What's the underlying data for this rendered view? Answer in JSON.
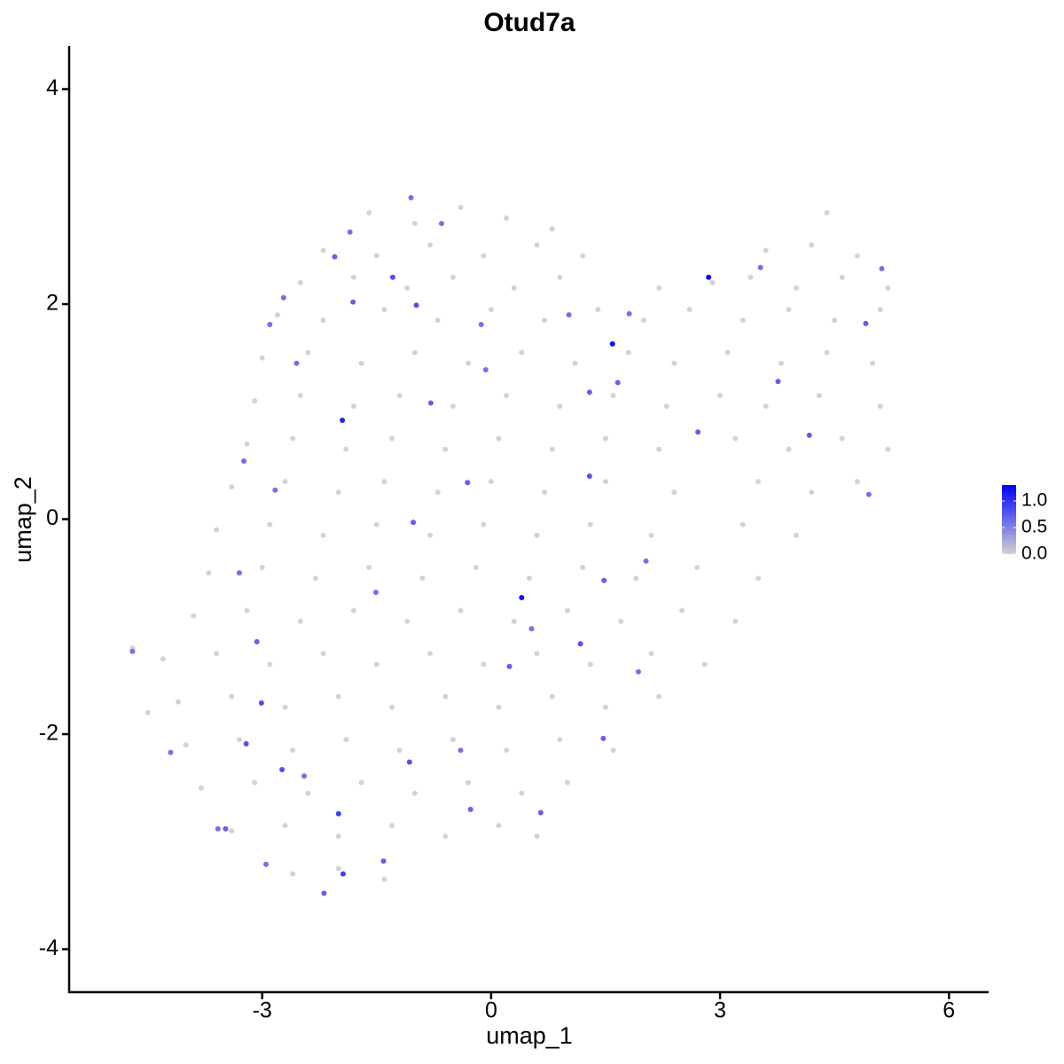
{
  "chart_data": {
    "type": "scatter",
    "title": "Otud7a",
    "x_label": "umap_1",
    "y_label": "umap_2",
    "xlim": [
      -5.53,
      6.52
    ],
    "ylim": [
      -4.4,
      4.4
    ],
    "xticks": [
      -3,
      0,
      3,
      6
    ],
    "yticks": [
      -4,
      -2,
      0,
      2,
      4
    ],
    "color_low": "#d3d3d3",
    "color_high": "#0000ff",
    "color_lim": [
      0,
      1.3
    ],
    "color_ticks": [
      {
        "value": 0,
        "label": "0.0"
      },
      {
        "value": 0.5,
        "label": "0.5"
      },
      {
        "value": 1,
        "label": "1.0"
      }
    ],
    "points": [
      {
        "x": -1.6,
        "y": 2.85,
        "expr": 0
      },
      {
        "x": -1.0,
        "y": 2.75,
        "expr": 0
      },
      {
        "x": -0.4,
        "y": 2.9,
        "expr": 0
      },
      {
        "x": 0.2,
        "y": 2.8,
        "expr": 0
      },
      {
        "x": 0.8,
        "y": 2.7,
        "expr": 0
      },
      {
        "x": 4.4,
        "y": 2.85,
        "expr": 0
      },
      {
        "x": -2.2,
        "y": 2.5,
        "expr": 0
      },
      {
        "x": -1.5,
        "y": 2.45,
        "expr": 0
      },
      {
        "x": -0.8,
        "y": 2.55,
        "expr": 0
      },
      {
        "x": -0.1,
        "y": 2.45,
        "expr": 0
      },
      {
        "x": 0.6,
        "y": 2.55,
        "expr": 0
      },
      {
        "x": 1.2,
        "y": 2.45,
        "expr": 0
      },
      {
        "x": 3.6,
        "y": 2.5,
        "expr": 0
      },
      {
        "x": 4.2,
        "y": 2.55,
        "expr": 0
      },
      {
        "x": 4.8,
        "y": 2.45,
        "expr": 0
      },
      {
        "x": -2.5,
        "y": 2.2,
        "expr": 0
      },
      {
        "x": -1.8,
        "y": 2.25,
        "expr": 0
      },
      {
        "x": -1.1,
        "y": 2.15,
        "expr": 0
      },
      {
        "x": -0.5,
        "y": 2.25,
        "expr": 0
      },
      {
        "x": 0.3,
        "y": 2.15,
        "expr": 0
      },
      {
        "x": 0.9,
        "y": 2.25,
        "expr": 0
      },
      {
        "x": 2.2,
        "y": 2.15,
        "expr": 0
      },
      {
        "x": 2.9,
        "y": 2.2,
        "expr": 0
      },
      {
        "x": 3.4,
        "y": 2.25,
        "expr": 0
      },
      {
        "x": 4.0,
        "y": 2.15,
        "expr": 0
      },
      {
        "x": 4.6,
        "y": 2.25,
        "expr": 0
      },
      {
        "x": 5.2,
        "y": 2.15,
        "expr": 0
      },
      {
        "x": -2.8,
        "y": 1.9,
        "expr": 0
      },
      {
        "x": -2.2,
        "y": 1.85,
        "expr": 0
      },
      {
        "x": -1.4,
        "y": 1.95,
        "expr": 0
      },
      {
        "x": -0.7,
        "y": 1.85,
        "expr": 0
      },
      {
        "x": 0.0,
        "y": 1.95,
        "expr": 0
      },
      {
        "x": 0.7,
        "y": 1.85,
        "expr": 0
      },
      {
        "x": 1.4,
        "y": 1.95,
        "expr": 0
      },
      {
        "x": 2.0,
        "y": 1.85,
        "expr": 0
      },
      {
        "x": 2.6,
        "y": 1.95,
        "expr": 0
      },
      {
        "x": 3.3,
        "y": 1.85,
        "expr": 0
      },
      {
        "x": 3.9,
        "y": 1.95,
        "expr": 0
      },
      {
        "x": 4.5,
        "y": 1.85,
        "expr": 0
      },
      {
        "x": 5.1,
        "y": 1.95,
        "expr": 0
      },
      {
        "x": -3.0,
        "y": 1.5,
        "expr": 0
      },
      {
        "x": -2.4,
        "y": 1.55,
        "expr": 0
      },
      {
        "x": -1.7,
        "y": 1.45,
        "expr": 0
      },
      {
        "x": -1.0,
        "y": 1.55,
        "expr": 0
      },
      {
        "x": -0.3,
        "y": 1.45,
        "expr": 0
      },
      {
        "x": 0.4,
        "y": 1.55,
        "expr": 0
      },
      {
        "x": 1.1,
        "y": 1.45,
        "expr": 0
      },
      {
        "x": 1.8,
        "y": 1.55,
        "expr": 0
      },
      {
        "x": 2.4,
        "y": 1.45,
        "expr": 0
      },
      {
        "x": 3.1,
        "y": 1.55,
        "expr": 0
      },
      {
        "x": 3.8,
        "y": 1.45,
        "expr": 0
      },
      {
        "x": 4.4,
        "y": 1.55,
        "expr": 0
      },
      {
        "x": 5.0,
        "y": 1.45,
        "expr": 0
      },
      {
        "x": -3.1,
        "y": 1.1,
        "expr": 0
      },
      {
        "x": -2.5,
        "y": 1.15,
        "expr": 0
      },
      {
        "x": -1.8,
        "y": 1.05,
        "expr": 0
      },
      {
        "x": -1.2,
        "y": 1.15,
        "expr": 0
      },
      {
        "x": -0.5,
        "y": 1.05,
        "expr": 0
      },
      {
        "x": 0.2,
        "y": 1.15,
        "expr": 0
      },
      {
        "x": 0.9,
        "y": 1.05,
        "expr": 0
      },
      {
        "x": 1.6,
        "y": 1.15,
        "expr": 0
      },
      {
        "x": 2.3,
        "y": 1.05,
        "expr": 0
      },
      {
        "x": 3.0,
        "y": 1.15,
        "expr": 0
      },
      {
        "x": 3.6,
        "y": 1.05,
        "expr": 0
      },
      {
        "x": 4.3,
        "y": 1.15,
        "expr": 0
      },
      {
        "x": 5.1,
        "y": 1.05,
        "expr": 0
      },
      {
        "x": -3.2,
        "y": 0.7,
        "expr": 0
      },
      {
        "x": -2.6,
        "y": 0.75,
        "expr": 0
      },
      {
        "x": -1.9,
        "y": 0.65,
        "expr": 0
      },
      {
        "x": -1.3,
        "y": 0.75,
        "expr": 0
      },
      {
        "x": -0.6,
        "y": 0.65,
        "expr": 0
      },
      {
        "x": 0.1,
        "y": 0.75,
        "expr": 0
      },
      {
        "x": 0.8,
        "y": 0.65,
        "expr": 0
      },
      {
        "x": 1.5,
        "y": 0.75,
        "expr": 0
      },
      {
        "x": 2.2,
        "y": 0.65,
        "expr": 0
      },
      {
        "x": 3.2,
        "y": 0.75,
        "expr": 0
      },
      {
        "x": 3.9,
        "y": 0.65,
        "expr": 0
      },
      {
        "x": 4.6,
        "y": 0.75,
        "expr": 0
      },
      {
        "x": 5.2,
        "y": 0.65,
        "expr": 0
      },
      {
        "x": -3.4,
        "y": 0.3,
        "expr": 0
      },
      {
        "x": -2.7,
        "y": 0.35,
        "expr": 0
      },
      {
        "x": -2.0,
        "y": 0.25,
        "expr": 0
      },
      {
        "x": -1.4,
        "y": 0.35,
        "expr": 0
      },
      {
        "x": -0.7,
        "y": 0.25,
        "expr": 0
      },
      {
        "x": 0.0,
        "y": 0.35,
        "expr": 0
      },
      {
        "x": 0.7,
        "y": 0.25,
        "expr": 0
      },
      {
        "x": 1.5,
        "y": 0.35,
        "expr": 0
      },
      {
        "x": 2.4,
        "y": 0.25,
        "expr": 0
      },
      {
        "x": 3.5,
        "y": 0.35,
        "expr": 0
      },
      {
        "x": 4.2,
        "y": 0.25,
        "expr": 0
      },
      {
        "x": 4.8,
        "y": 0.35,
        "expr": 0
      },
      {
        "x": -3.6,
        "y": -0.1,
        "expr": 0
      },
      {
        "x": -2.9,
        "y": -0.05,
        "expr": 0
      },
      {
        "x": -2.2,
        "y": -0.15,
        "expr": 0
      },
      {
        "x": -1.5,
        "y": -0.05,
        "expr": 0
      },
      {
        "x": -0.8,
        "y": -0.15,
        "expr": 0
      },
      {
        "x": -0.1,
        "y": -0.05,
        "expr": 0
      },
      {
        "x": 0.6,
        "y": -0.15,
        "expr": 0
      },
      {
        "x": 1.3,
        "y": -0.05,
        "expr": 0
      },
      {
        "x": 2.1,
        "y": -0.15,
        "expr": 0
      },
      {
        "x": 3.3,
        "y": -0.05,
        "expr": 0
      },
      {
        "x": 4.0,
        "y": -0.15,
        "expr": 0
      },
      {
        "x": -3.7,
        "y": -0.5,
        "expr": 0
      },
      {
        "x": -3.0,
        "y": -0.45,
        "expr": 0
      },
      {
        "x": -2.3,
        "y": -0.55,
        "expr": 0
      },
      {
        "x": -1.6,
        "y": -0.45,
        "expr": 0
      },
      {
        "x": -0.9,
        "y": -0.55,
        "expr": 0
      },
      {
        "x": -0.2,
        "y": -0.45,
        "expr": 0
      },
      {
        "x": 0.5,
        "y": -0.55,
        "expr": 0
      },
      {
        "x": 1.2,
        "y": -0.45,
        "expr": 0
      },
      {
        "x": 1.9,
        "y": -0.55,
        "expr": 0
      },
      {
        "x": 2.7,
        "y": -0.45,
        "expr": 0
      },
      {
        "x": 3.5,
        "y": -0.55,
        "expr": 0
      },
      {
        "x": -3.9,
        "y": -0.9,
        "expr": 0
      },
      {
        "x": -3.2,
        "y": -0.85,
        "expr": 0
      },
      {
        "x": -2.5,
        "y": -0.95,
        "expr": 0
      },
      {
        "x": -1.8,
        "y": -0.85,
        "expr": 0
      },
      {
        "x": -1.1,
        "y": -0.95,
        "expr": 0
      },
      {
        "x": -0.4,
        "y": -0.85,
        "expr": 0
      },
      {
        "x": 0.3,
        "y": -0.95,
        "expr": 0
      },
      {
        "x": 1.0,
        "y": -0.85,
        "expr": 0
      },
      {
        "x": 1.7,
        "y": -0.95,
        "expr": 0
      },
      {
        "x": 2.5,
        "y": -0.85,
        "expr": 0
      },
      {
        "x": 3.2,
        "y": -0.95,
        "expr": 0
      },
      {
        "x": -4.3,
        "y": -1.3,
        "expr": 0
      },
      {
        "x": -3.6,
        "y": -1.25,
        "expr": 0
      },
      {
        "x": -2.9,
        "y": -1.35,
        "expr": 0
      },
      {
        "x": -2.2,
        "y": -1.25,
        "expr": 0
      },
      {
        "x": -1.5,
        "y": -1.35,
        "expr": 0
      },
      {
        "x": -0.8,
        "y": -1.25,
        "expr": 0
      },
      {
        "x": -0.1,
        "y": -1.35,
        "expr": 0
      },
      {
        "x": 0.6,
        "y": -1.25,
        "expr": 0
      },
      {
        "x": 1.3,
        "y": -1.35,
        "expr": 0
      },
      {
        "x": 2.1,
        "y": -1.25,
        "expr": 0
      },
      {
        "x": 2.8,
        "y": -1.35,
        "expr": 0
      },
      {
        "x": -4.1,
        "y": -1.7,
        "expr": 0
      },
      {
        "x": -3.4,
        "y": -1.65,
        "expr": 0
      },
      {
        "x": -2.7,
        "y": -1.75,
        "expr": 0
      },
      {
        "x": -2.0,
        "y": -1.65,
        "expr": 0
      },
      {
        "x": -1.3,
        "y": -1.75,
        "expr": 0
      },
      {
        "x": -0.6,
        "y": -1.65,
        "expr": 0
      },
      {
        "x": 0.1,
        "y": -1.75,
        "expr": 0
      },
      {
        "x": 0.8,
        "y": -1.65,
        "expr": 0
      },
      {
        "x": 1.5,
        "y": -1.75,
        "expr": 0
      },
      {
        "x": 2.2,
        "y": -1.65,
        "expr": 0
      },
      {
        "x": -4.0,
        "y": -2.1,
        "expr": 0
      },
      {
        "x": -3.3,
        "y": -2.05,
        "expr": 0
      },
      {
        "x": -2.6,
        "y": -2.15,
        "expr": 0
      },
      {
        "x": -1.9,
        "y": -2.05,
        "expr": 0
      },
      {
        "x": -1.2,
        "y": -2.15,
        "expr": 0
      },
      {
        "x": -0.5,
        "y": -2.05,
        "expr": 0
      },
      {
        "x": 0.2,
        "y": -2.15,
        "expr": 0
      },
      {
        "x": 0.9,
        "y": -2.05,
        "expr": 0
      },
      {
        "x": 1.6,
        "y": -2.15,
        "expr": 0
      },
      {
        "x": -3.8,
        "y": -2.5,
        "expr": 0
      },
      {
        "x": -3.1,
        "y": -2.45,
        "expr": 0
      },
      {
        "x": -2.4,
        "y": -2.55,
        "expr": 0
      },
      {
        "x": -1.7,
        "y": -2.45,
        "expr": 0
      },
      {
        "x": -1.0,
        "y": -2.55,
        "expr": 0
      },
      {
        "x": -0.3,
        "y": -2.45,
        "expr": 0
      },
      {
        "x": 0.4,
        "y": -2.55,
        "expr": 0
      },
      {
        "x": 1.0,
        "y": -2.45,
        "expr": 0
      },
      {
        "x": -3.4,
        "y": -2.9,
        "expr": 0
      },
      {
        "x": -2.7,
        "y": -2.85,
        "expr": 0
      },
      {
        "x": -2.0,
        "y": -2.95,
        "expr": 0
      },
      {
        "x": -1.3,
        "y": -2.85,
        "expr": 0
      },
      {
        "x": -0.6,
        "y": -2.95,
        "expr": 0
      },
      {
        "x": 0.1,
        "y": -2.85,
        "expr": 0
      },
      {
        "x": 0.6,
        "y": -2.95,
        "expr": 0
      },
      {
        "x": -2.6,
        "y": -3.3,
        "expr": 0
      },
      {
        "x": -2.0,
        "y": -3.25,
        "expr": 0
      },
      {
        "x": -1.4,
        "y": -3.35,
        "expr": 0
      },
      {
        "x": -4.7,
        "y": -1.2,
        "expr": 0
      },
      {
        "x": -4.5,
        "y": -1.8,
        "expr": 0
      },
      {
        "x": 2.85,
        "y": 2.25,
        "expr": 1.3
      },
      {
        "x": 1.59,
        "y": 1.63,
        "expr": 1.2
      },
      {
        "x": -1.95,
        "y": 0.92,
        "expr": 1.1
      },
      {
        "x": 0.4,
        "y": -0.73,
        "expr": 1.2
      },
      {
        "x": -2.0,
        "y": -2.74,
        "expr": 0.9
      },
      {
        "x": -1.94,
        "y": -3.3,
        "expr": 0.9
      },
      {
        "x": -2.19,
        "y": -3.48,
        "expr": 0.7
      },
      {
        "x": -0.98,
        "y": 1.99,
        "expr": 0.8
      },
      {
        "x": -1.29,
        "y": 2.25,
        "expr": 0.8
      },
      {
        "x": -2.05,
        "y": 2.44,
        "expr": 0.7
      },
      {
        "x": -1.81,
        "y": 2.02,
        "expr": 0.7
      },
      {
        "x": -2.9,
        "y": 1.81,
        "expr": 0.6
      },
      {
        "x": -2.55,
        "y": 1.45,
        "expr": 0.6
      },
      {
        "x": -3.24,
        "y": 0.54,
        "expr": 0.6
      },
      {
        "x": -3.3,
        "y": -0.5,
        "expr": 0.6
      },
      {
        "x": -3.07,
        "y": -1.14,
        "expr": 0.7
      },
      {
        "x": -3.01,
        "y": -1.71,
        "expr": 0.8
      },
      {
        "x": -3.21,
        "y": -2.09,
        "expr": 0.8
      },
      {
        "x": -2.74,
        "y": -2.33,
        "expr": 0.8
      },
      {
        "x": -3.48,
        "y": -2.88,
        "expr": 0.7
      },
      {
        "x": -4.2,
        "y": -2.17,
        "expr": 0.6
      },
      {
        "x": -4.7,
        "y": -1.23,
        "expr": 0.6
      },
      {
        "x": -1.07,
        "y": -2.26,
        "expr": 0.8
      },
      {
        "x": -0.27,
        "y": -2.7,
        "expr": 0.7
      },
      {
        "x": 0.24,
        "y": -1.37,
        "expr": 0.7
      },
      {
        "x": 1.17,
        "y": -1.16,
        "expr": 0.8
      },
      {
        "x": 1.48,
        "y": -0.57,
        "expr": 0.7
      },
      {
        "x": 1.29,
        "y": 0.4,
        "expr": 0.8
      },
      {
        "x": 1.29,
        "y": 1.18,
        "expr": 0.7
      },
      {
        "x": 1.66,
        "y": 1.27,
        "expr": 0.7
      },
      {
        "x": 2.71,
        "y": 0.81,
        "expr": 0.7
      },
      {
        "x": 3.76,
        "y": 1.28,
        "expr": 0.7
      },
      {
        "x": 4.17,
        "y": 0.78,
        "expr": 0.7
      },
      {
        "x": 4.95,
        "y": 0.23,
        "expr": 0.6
      },
      {
        "x": 4.91,
        "y": 1.82,
        "expr": 0.7
      },
      {
        "x": 5.12,
        "y": 2.33,
        "expr": 0.6
      },
      {
        "x": 3.53,
        "y": 2.34,
        "expr": 0.6
      },
      {
        "x": 1.81,
        "y": 1.91,
        "expr": 0.6
      },
      {
        "x": 1.02,
        "y": 1.9,
        "expr": 0.6
      },
      {
        "x": -0.07,
        "y": 1.39,
        "expr": 0.6
      },
      {
        "x": -0.31,
        "y": 0.34,
        "expr": 0.7
      },
      {
        "x": -0.79,
        "y": 1.08,
        "expr": 0.7
      },
      {
        "x": -1.02,
        "y": -0.03,
        "expr": 0.7
      },
      {
        "x": -1.51,
        "y": -0.68,
        "expr": 0.6
      },
      {
        "x": 0.65,
        "y": -2.73,
        "expr": 0.7
      },
      {
        "x": 1.47,
        "y": -2.04,
        "expr": 0.7
      },
      {
        "x": 1.93,
        "y": -1.42,
        "expr": 0.6
      },
      {
        "x": 2.03,
        "y": -0.39,
        "expr": 0.6
      },
      {
        "x": -1.41,
        "y": -3.18,
        "expr": 0.7
      },
      {
        "x": -2.95,
        "y": -3.21,
        "expr": 0.6
      },
      {
        "x": -3.58,
        "y": -2.88,
        "expr": 0.6
      },
      {
        "x": -2.45,
        "y": -2.39,
        "expr": 0.6
      },
      {
        "x": -0.4,
        "y": -2.15,
        "expr": 0.6
      },
      {
        "x": 0.53,
        "y": -1.02,
        "expr": 0.6
      },
      {
        "x": -0.13,
        "y": 1.81,
        "expr": 0.6
      },
      {
        "x": -0.65,
        "y": 2.75,
        "expr": 0.6
      },
      {
        "x": -1.05,
        "y": 2.99,
        "expr": 0.6
      },
      {
        "x": -1.85,
        "y": 2.67,
        "expr": 0.6
      },
      {
        "x": -2.72,
        "y": 2.06,
        "expr": 0.6
      },
      {
        "x": -2.83,
        "y": 0.27,
        "expr": 0.6
      }
    ]
  }
}
